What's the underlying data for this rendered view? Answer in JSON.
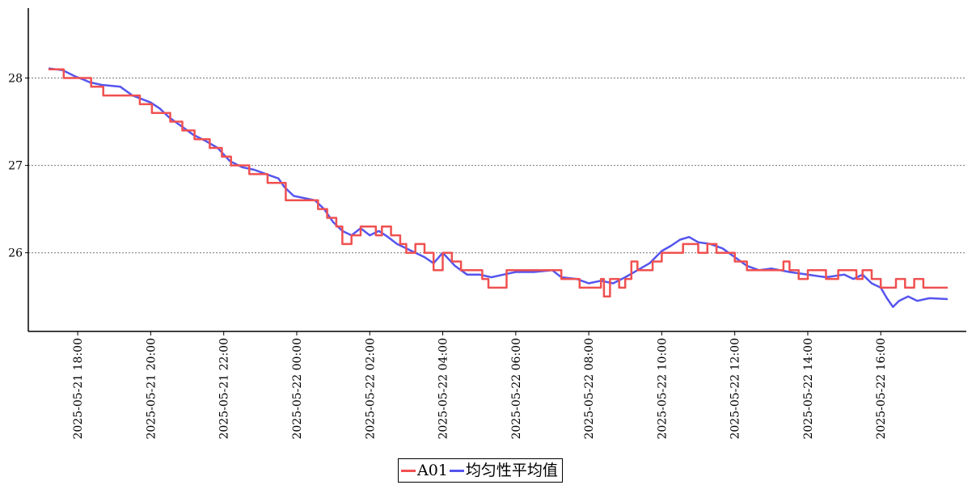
{
  "chart_data": {
    "type": "line",
    "title": "",
    "xlabel": "",
    "ylabel": "",
    "x_range": [
      "2025-05-21 17:12",
      "2025-05-22 17:50"
    ],
    "ylim": [
      25.1,
      28.8
    ],
    "grid": "horizontal dotted",
    "legend_position": "bottom-center",
    "y_ticks": [
      "26",
      "27",
      "28"
    ],
    "x_ticks": [
      "2025-05-21 18:00",
      "2025-05-21 20:00",
      "2025-05-21 22:00",
      "2025-05-22 00:00",
      "2025-05-22 02:00",
      "2025-05-22 04:00",
      "2025-05-22 06:00",
      "2025-05-22 08:00",
      "2025-05-22 10:00",
      "2025-05-22 12:00",
      "2025-05-22 14:00",
      "2025-05-22 16:00"
    ],
    "series": [
      {
        "name": "A01",
        "color": "#f05050",
        "points": [
          [
            "2025-05-21 17:12",
            28.1
          ],
          [
            "2025-05-21 17:30",
            28.1
          ],
          [
            "2025-05-21 17:37",
            28.0
          ],
          [
            "2025-05-21 18:20",
            28.0
          ],
          [
            "2025-05-21 18:22",
            27.9
          ],
          [
            "2025-05-21 18:40",
            27.9
          ],
          [
            "2025-05-21 18:42",
            27.8
          ],
          [
            "2025-05-21 19:40",
            27.8
          ],
          [
            "2025-05-21 19:42",
            27.7
          ],
          [
            "2025-05-21 20:00",
            27.7
          ],
          [
            "2025-05-21 20:02",
            27.6
          ],
          [
            "2025-05-21 20:30",
            27.6
          ],
          [
            "2025-05-21 20:32",
            27.5
          ],
          [
            "2025-05-21 20:50",
            27.5
          ],
          [
            "2025-05-21 20:52",
            27.4
          ],
          [
            "2025-05-21 21:10",
            27.4
          ],
          [
            "2025-05-21 21:12",
            27.3
          ],
          [
            "2025-05-21 21:35",
            27.3
          ],
          [
            "2025-05-21 21:37",
            27.2
          ],
          [
            "2025-05-21 21:55",
            27.2
          ],
          [
            "2025-05-21 21:57",
            27.1
          ],
          [
            "2025-05-21 22:10",
            27.1
          ],
          [
            "2025-05-21 22:12",
            27.0
          ],
          [
            "2025-05-21 22:40",
            27.0
          ],
          [
            "2025-05-21 22:42",
            26.9
          ],
          [
            "2025-05-21 23:10",
            26.9
          ],
          [
            "2025-05-21 23:12",
            26.8
          ],
          [
            "2025-05-21 23:40",
            26.8
          ],
          [
            "2025-05-21 23:42",
            26.6
          ],
          [
            "2025-05-22 00:30",
            26.6
          ],
          [
            "2025-05-22 00:35",
            26.5
          ],
          [
            "2025-05-22 00:50",
            26.4
          ],
          [
            "2025-05-22 01:00",
            26.4
          ],
          [
            "2025-05-22 01:05",
            26.3
          ],
          [
            "2025-05-22 01:15",
            26.1
          ],
          [
            "2025-05-22 01:30",
            26.2
          ],
          [
            "2025-05-22 01:45",
            26.3
          ],
          [
            "2025-05-22 02:00",
            26.3
          ],
          [
            "2025-05-22 02:10",
            26.2
          ],
          [
            "2025-05-22 02:20",
            26.3
          ],
          [
            "2025-05-22 02:35",
            26.2
          ],
          [
            "2025-05-22 02:50",
            26.1
          ],
          [
            "2025-05-22 03:00",
            26.0
          ],
          [
            "2025-05-22 03:15",
            26.1
          ],
          [
            "2025-05-22 03:30",
            26.0
          ],
          [
            "2025-05-22 03:45",
            25.8
          ],
          [
            "2025-05-22 04:00",
            26.0
          ],
          [
            "2025-05-22 04:15",
            25.9
          ],
          [
            "2025-05-22 04:30",
            25.8
          ],
          [
            "2025-05-22 05:00",
            25.8
          ],
          [
            "2025-05-22 05:05",
            25.7
          ],
          [
            "2025-05-22 05:15",
            25.6
          ],
          [
            "2025-05-22 05:35",
            25.6
          ],
          [
            "2025-05-22 05:45",
            25.8
          ],
          [
            "2025-05-22 06:30",
            25.8
          ],
          [
            "2025-05-22 07:00",
            25.8
          ],
          [
            "2025-05-22 07:15",
            25.7
          ],
          [
            "2025-05-22 07:30",
            25.7
          ],
          [
            "2025-05-22 07:45",
            25.6
          ],
          [
            "2025-05-22 08:15",
            25.6
          ],
          [
            "2025-05-22 08:20",
            25.7
          ],
          [
            "2025-05-22 08:25",
            25.5
          ],
          [
            "2025-05-22 08:35",
            25.7
          ],
          [
            "2025-05-22 08:50",
            25.6
          ],
          [
            "2025-05-22 09:00",
            25.7
          ],
          [
            "2025-05-22 09:10",
            25.9
          ],
          [
            "2025-05-22 09:20",
            25.8
          ],
          [
            "2025-05-22 09:35",
            25.8
          ],
          [
            "2025-05-22 09:45",
            25.9
          ],
          [
            "2025-05-22 10:00",
            26.0
          ],
          [
            "2025-05-22 10:30",
            26.0
          ],
          [
            "2025-05-22 10:35",
            26.1
          ],
          [
            "2025-05-22 10:55",
            26.1
          ],
          [
            "2025-05-22 11:00",
            26.0
          ],
          [
            "2025-05-22 11:15",
            26.1
          ],
          [
            "2025-05-22 11:30",
            26.0
          ],
          [
            "2025-05-22 11:45",
            26.0
          ],
          [
            "2025-05-22 12:00",
            25.9
          ],
          [
            "2025-05-22 12:20",
            25.8
          ],
          [
            "2025-05-22 12:40",
            25.8
          ],
          [
            "2025-05-22 13:00",
            25.8
          ],
          [
            "2025-05-22 13:20",
            25.9
          ],
          [
            "2025-05-22 13:30",
            25.8
          ],
          [
            "2025-05-22 13:45",
            25.7
          ],
          [
            "2025-05-22 14:00",
            25.8
          ],
          [
            "2025-05-22 14:30",
            25.7
          ],
          [
            "2025-05-22 14:50",
            25.8
          ],
          [
            "2025-05-22 15:10",
            25.8
          ],
          [
            "2025-05-22 15:20",
            25.7
          ],
          [
            "2025-05-22 15:30",
            25.8
          ],
          [
            "2025-05-22 15:45",
            25.7
          ],
          [
            "2025-05-22 16:00",
            25.6
          ],
          [
            "2025-05-22 16:15",
            25.6
          ],
          [
            "2025-05-22 16:25",
            25.7
          ],
          [
            "2025-05-22 16:40",
            25.6
          ],
          [
            "2025-05-22 16:55",
            25.7
          ],
          [
            "2025-05-22 17:10",
            25.6
          ],
          [
            "2025-05-22 17:50",
            25.6
          ]
        ]
      },
      {
        "name": "均匀性平均值",
        "color": "#5555ee",
        "points": [
          [
            "2025-05-21 17:12",
            28.11
          ],
          [
            "2025-05-21 17:35",
            28.09
          ],
          [
            "2025-05-21 17:55",
            28.02
          ],
          [
            "2025-05-21 18:10",
            27.98
          ],
          [
            "2025-05-21 18:20",
            27.95
          ],
          [
            "2025-05-21 18:40",
            27.92
          ],
          [
            "2025-05-21 19:10",
            27.9
          ],
          [
            "2025-05-21 19:30",
            27.8
          ],
          [
            "2025-05-21 20:00",
            27.72
          ],
          [
            "2025-05-21 20:15",
            27.65
          ],
          [
            "2025-05-21 20:30",
            27.55
          ],
          [
            "2025-05-21 20:50",
            27.45
          ],
          [
            "2025-05-21 21:10",
            27.35
          ],
          [
            "2025-05-21 21:30",
            27.28
          ],
          [
            "2025-05-21 21:50",
            27.2
          ],
          [
            "2025-05-21 22:10",
            27.05
          ],
          [
            "2025-05-21 22:30",
            26.98
          ],
          [
            "2025-05-21 22:50",
            26.95
          ],
          [
            "2025-05-21 23:10",
            26.9
          ],
          [
            "2025-05-21 23:30",
            26.85
          ],
          [
            "2025-05-21 23:40",
            26.75
          ],
          [
            "2025-05-21 23:55",
            26.65
          ],
          [
            "2025-05-22 00:30",
            26.6
          ],
          [
            "2025-05-22 00:45",
            26.5
          ],
          [
            "2025-05-22 01:00",
            26.35
          ],
          [
            "2025-05-22 01:15",
            26.25
          ],
          [
            "2025-05-22 01:30",
            26.2
          ],
          [
            "2025-05-22 01:45",
            26.28
          ],
          [
            "2025-05-22 02:00",
            26.2
          ],
          [
            "2025-05-22 02:15",
            26.25
          ],
          [
            "2025-05-22 02:30",
            26.18
          ],
          [
            "2025-05-22 02:45",
            26.1
          ],
          [
            "2025-05-22 03:00",
            26.05
          ],
          [
            "2025-05-22 03:15",
            26.0
          ],
          [
            "2025-05-22 03:30",
            25.95
          ],
          [
            "2025-05-22 03:45",
            25.88
          ],
          [
            "2025-05-22 04:00",
            26.0
          ],
          [
            "2025-05-22 04:20",
            25.85
          ],
          [
            "2025-05-22 04:40",
            25.75
          ],
          [
            "2025-05-22 05:00",
            25.75
          ],
          [
            "2025-05-22 05:20",
            25.72
          ],
          [
            "2025-05-22 05:40",
            25.75
          ],
          [
            "2025-05-22 06:00",
            25.78
          ],
          [
            "2025-05-22 06:30",
            25.78
          ],
          [
            "2025-05-22 07:00",
            25.8
          ],
          [
            "2025-05-22 07:15",
            25.72
          ],
          [
            "2025-05-22 07:40",
            25.7
          ],
          [
            "2025-05-22 08:00",
            25.65
          ],
          [
            "2025-05-22 08:20",
            25.68
          ],
          [
            "2025-05-22 08:40",
            25.65
          ],
          [
            "2025-05-22 09:00",
            25.72
          ],
          [
            "2025-05-22 09:20",
            25.8
          ],
          [
            "2025-05-22 09:40",
            25.88
          ],
          [
            "2025-05-22 10:00",
            26.02
          ],
          [
            "2025-05-22 10:15",
            26.08
          ],
          [
            "2025-05-22 10:30",
            26.15
          ],
          [
            "2025-05-22 10:45",
            26.18
          ],
          [
            "2025-05-22 11:00",
            26.12
          ],
          [
            "2025-05-22 11:20",
            26.1
          ],
          [
            "2025-05-22 11:40",
            26.05
          ],
          [
            "2025-05-22 12:00",
            25.95
          ],
          [
            "2025-05-22 12:20",
            25.85
          ],
          [
            "2025-05-22 12:40",
            25.8
          ],
          [
            "2025-05-22 13:00",
            25.82
          ],
          [
            "2025-05-22 13:30",
            25.78
          ],
          [
            "2025-05-22 14:00",
            25.75
          ],
          [
            "2025-05-22 14:30",
            25.72
          ],
          [
            "2025-05-22 15:00",
            25.75
          ],
          [
            "2025-05-22 15:15",
            25.7
          ],
          [
            "2025-05-22 15:30",
            25.75
          ],
          [
            "2025-05-22 15:45",
            25.65
          ],
          [
            "2025-05-22 16:00",
            25.6
          ],
          [
            "2025-05-22 16:10",
            25.48
          ],
          [
            "2025-05-22 16:20",
            25.38
          ],
          [
            "2025-05-22 16:30",
            25.45
          ],
          [
            "2025-05-22 16:45",
            25.5
          ],
          [
            "2025-05-22 17:00",
            25.45
          ],
          [
            "2025-05-22 17:20",
            25.48
          ],
          [
            "2025-05-22 17:50",
            25.47
          ]
        ]
      }
    ]
  }
}
